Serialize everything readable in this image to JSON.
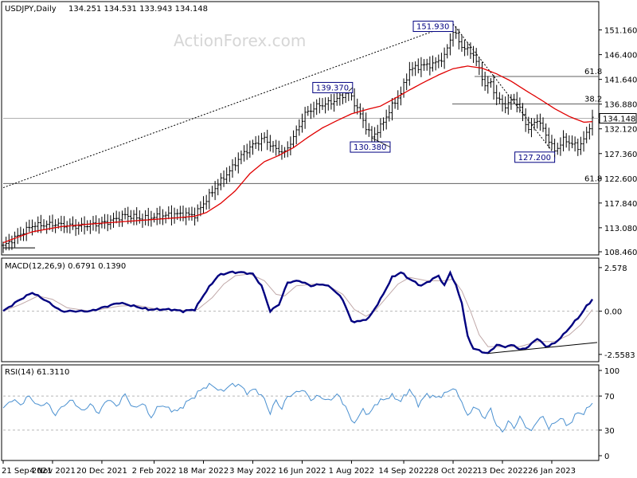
{
  "chart_data": {
    "type": "line",
    "symbol_label": "USDJPY,Daily",
    "ohlc_label": "134.251 134.531 133.943 134.148",
    "watermark": "ActionForex.com",
    "current_price": "134.148",
    "colors": {
      "price": "#000000",
      "ma": "#e00000",
      "macd": "#000080",
      "signal": "#c0a8a8",
      "rsi": "#4a90d0",
      "grid": "#b8b8b8",
      "label_border": "#000080"
    },
    "price_panel": {
      "ylim": [
        108.46,
        156.0
      ],
      "y_ticks": [
        "151.160",
        "146.400",
        "141.640",
        "136.880",
        "132.120",
        "127.360",
        "122.600",
        "117.840",
        "113.080",
        "108.460"
      ],
      "y_tick_values": [
        151.16,
        146.4,
        141.64,
        136.88,
        132.12,
        127.36,
        122.6,
        117.84,
        113.08,
        108.46
      ],
      "fib_levels": [
        {
          "label": "61.8",
          "value": 142.2
        },
        {
          "label": "38.2",
          "value": 136.9
        },
        {
          "label": "61.8",
          "value": 121.6
        }
      ],
      "current_price_value": 134.148,
      "annotations": [
        {
          "text": "151.930",
          "value": 151.93,
          "index": 155
        },
        {
          "text": "139.370",
          "value": 139.37,
          "index": 119
        },
        {
          "text": "130.380",
          "value": 130.38,
          "index": 127
        },
        {
          "text": "127.200",
          "value": 127.2,
          "index": 190
        }
      ],
      "close_keypoints": [
        [
          0,
          109.5
        ],
        [
          5,
          111.5
        ],
        [
          10,
          113.5
        ],
        [
          18,
          113.8
        ],
        [
          25,
          113.3
        ],
        [
          30,
          113.6
        ],
        [
          36,
          114.2
        ],
        [
          42,
          115.5
        ],
        [
          48,
          114.8
        ],
        [
          54,
          115.3
        ],
        [
          60,
          115.7
        ],
        [
          66,
          115.5
        ],
        [
          70,
          118.5
        ],
        [
          74,
          121.5
        ],
        [
          78,
          124.0
        ],
        [
          82,
          127.0
        ],
        [
          86,
          129.0
        ],
        [
          90,
          130.3
        ],
        [
          93,
          128.5
        ],
        [
          97,
          127.5
        ],
        [
          100,
          130.5
        ],
        [
          104,
          135.0
        ],
        [
          108,
          136.5
        ],
        [
          113,
          137.2
        ],
        [
          119,
          139.3
        ],
        [
          122,
          136.0
        ],
        [
          125,
          132.5
        ],
        [
          127,
          130.5
        ],
        [
          130,
          132.5
        ],
        [
          134,
          136.5
        ],
        [
          137,
          139.0
        ],
        [
          140,
          143.5
        ],
        [
          144,
          144.3
        ],
        [
          148,
          144.5
        ],
        [
          152,
          146.0
        ],
        [
          155,
          151.0
        ],
        [
          158,
          148.0
        ],
        [
          162,
          146.5
        ],
        [
          164,
          143.5
        ],
        [
          166,
          140.5
        ],
        [
          168,
          141.0
        ],
        [
          170,
          138.0
        ],
        [
          173,
          136.5
        ],
        [
          176,
          138.0
        ],
        [
          178,
          136.0
        ],
        [
          181,
          132.0
        ],
        [
          184,
          134.0
        ],
        [
          187,
          131.0
        ],
        [
          190,
          127.8
        ],
        [
          193,
          130.0
        ],
        [
          196,
          129.3
        ],
        [
          198,
          128.5
        ],
        [
          201,
          131.0
        ],
        [
          203,
          134.3
        ]
      ],
      "ma_keypoints": [
        [
          0,
          110.2
        ],
        [
          10,
          112.3
        ],
        [
          20,
          113.3
        ],
        [
          30,
          113.8
        ],
        [
          40,
          114.2
        ],
        [
          50,
          114.6
        ],
        [
          60,
          115.0
        ],
        [
          66,
          115.3
        ],
        [
          70,
          116.0
        ],
        [
          75,
          117.8
        ],
        [
          80,
          120.2
        ],
        [
          85,
          123.5
        ],
        [
          90,
          125.8
        ],
        [
          95,
          127.0
        ],
        [
          100,
          128.5
        ],
        [
          105,
          130.5
        ],
        [
          110,
          132.3
        ],
        [
          115,
          133.7
        ],
        [
          120,
          135.0
        ],
        [
          125,
          135.8
        ],
        [
          130,
          136.5
        ],
        [
          135,
          138.0
        ],
        [
          140,
          139.6
        ],
        [
          145,
          141.1
        ],
        [
          150,
          142.5
        ],
        [
          155,
          143.7
        ],
        [
          160,
          144.2
        ],
        [
          165,
          143.8
        ],
        [
          170,
          142.7
        ],
        [
          175,
          141.3
        ],
        [
          180,
          139.5
        ],
        [
          185,
          137.8
        ],
        [
          190,
          136.0
        ],
        [
          195,
          134.5
        ],
        [
          200,
          133.4
        ],
        [
          203,
          133.5
        ]
      ]
    },
    "macd_panel": {
      "title": "MACD(12,26,9) 0.6791 0.1390",
      "ylim": [
        -2.8,
        2.95
      ],
      "y_ticks": [
        "2.578",
        "0.00",
        "-2.5583"
      ],
      "y_tick_values": [
        2.578,
        0.0,
        -2.5583
      ],
      "macd_keypoints": [
        [
          0,
          0.0
        ],
        [
          5,
          0.6
        ],
        [
          10,
          1.1
        ],
        [
          15,
          0.6
        ],
        [
          20,
          0.0
        ],
        [
          30,
          0.0
        ],
        [
          40,
          0.5
        ],
        [
          45,
          0.3
        ],
        [
          50,
          0.1
        ],
        [
          58,
          0.1
        ],
        [
          62,
          0.0
        ],
        [
          66,
          0.1
        ],
        [
          70,
          1.2
        ],
        [
          74,
          2.1
        ],
        [
          78,
          2.3
        ],
        [
          82,
          2.3
        ],
        [
          86,
          2.2
        ],
        [
          89,
          1.5
        ],
        [
          92,
          0.0
        ],
        [
          95,
          0.4
        ],
        [
          98,
          1.7
        ],
        [
          102,
          1.8
        ],
        [
          106,
          1.5
        ],
        [
          110,
          1.6
        ],
        [
          113,
          1.4
        ],
        [
          117,
          0.7
        ],
        [
          120,
          -0.6
        ],
        [
          123,
          -0.6
        ],
        [
          126,
          -0.4
        ],
        [
          130,
          0.7
        ],
        [
          134,
          2.0
        ],
        [
          137,
          2.3
        ],
        [
          140,
          1.9
        ],
        [
          144,
          1.5
        ],
        [
          148,
          1.9
        ],
        [
          150,
          2.1
        ],
        [
          152,
          1.5
        ],
        [
          154,
          2.3
        ],
        [
          156,
          1.5
        ],
        [
          158,
          0.5
        ],
        [
          160,
          -1.5
        ],
        [
          162,
          -2.2
        ],
        [
          165,
          -2.4
        ],
        [
          167,
          -2.5
        ],
        [
          170,
          -2.0
        ],
        [
          173,
          -2.1
        ],
        [
          176,
          -2.0
        ],
        [
          178,
          -2.3
        ],
        [
          181,
          -2.1
        ],
        [
          184,
          -1.6
        ],
        [
          187,
          -2.1
        ],
        [
          190,
          -1.9
        ],
        [
          193,
          -1.4
        ],
        [
          196,
          -0.8
        ],
        [
          199,
          -0.2
        ],
        [
          201,
          0.3
        ],
        [
          203,
          0.7
        ]
      ],
      "signal_keypoints": [
        [
          0,
          0.0
        ],
        [
          6,
          0.4
        ],
        [
          12,
          0.9
        ],
        [
          17,
          0.7
        ],
        [
          22,
          0.2
        ],
        [
          30,
          0.0
        ],
        [
          40,
          0.3
        ],
        [
          46,
          0.35
        ],
        [
          52,
          0.15
        ],
        [
          62,
          0.05
        ],
        [
          67,
          0.1
        ],
        [
          72,
          0.8
        ],
        [
          76,
          1.6
        ],
        [
          80,
          2.1
        ],
        [
          85,
          2.2
        ],
        [
          90,
          1.8
        ],
        [
          94,
          1.0
        ],
        [
          97,
          0.9
        ],
        [
          101,
          1.5
        ],
        [
          107,
          1.6
        ],
        [
          112,
          1.5
        ],
        [
          117,
          1.0
        ],
        [
          121,
          0.1
        ],
        [
          125,
          -0.3
        ],
        [
          128,
          0.0
        ],
        [
          132,
          0.8
        ],
        [
          136,
          1.6
        ],
        [
          140,
          2.0
        ],
        [
          146,
          1.8
        ],
        [
          152,
          1.8
        ],
        [
          155,
          1.9
        ],
        [
          158,
          1.2
        ],
        [
          161,
          0.0
        ],
        [
          164,
          -1.4
        ],
        [
          167,
          -2.1
        ],
        [
          172,
          -2.1
        ],
        [
          178,
          -2.1
        ],
        [
          184,
          -1.8
        ],
        [
          190,
          -1.8
        ],
        [
          195,
          -1.4
        ],
        [
          199,
          -0.8
        ],
        [
          203,
          0.1
        ]
      ],
      "divergence_line": [
        [
          167,
          -2.5
        ],
        [
          203,
          -1.85
        ]
      ]
    },
    "rsi_panel": {
      "title": "RSI(14) 61.3110",
      "ylim": [
        0,
        100
      ],
      "y_ticks": [
        "100",
        "70",
        "30",
        "0"
      ],
      "y_tick_values": [
        100,
        70,
        30,
        0
      ],
      "levels": [
        70,
        30
      ],
      "rsi_keypoints": [
        [
          0,
          55
        ],
        [
          3,
          66
        ],
        [
          6,
          60
        ],
        [
          9,
          70
        ],
        [
          12,
          58
        ],
        [
          15,
          62
        ],
        [
          18,
          48
        ],
        [
          21,
          60
        ],
        [
          24,
          65
        ],
        [
          27,
          52
        ],
        [
          30,
          60
        ],
        [
          33,
          50
        ],
        [
          36,
          67
        ],
        [
          39,
          58
        ],
        [
          42,
          72
        ],
        [
          45,
          55
        ],
        [
          48,
          62
        ],
        [
          51,
          45
        ],
        [
          54,
          60
        ],
        [
          57,
          55
        ],
        [
          60,
          52
        ],
        [
          63,
          62
        ],
        [
          66,
          70
        ],
        [
          69,
          80
        ],
        [
          72,
          83
        ],
        [
          75,
          75
        ],
        [
          78,
          82
        ],
        [
          81,
          84
        ],
        [
          84,
          74
        ],
        [
          87,
          78
        ],
        [
          90,
          66
        ],
        [
          92,
          50
        ],
        [
          94,
          65
        ],
        [
          96,
          55
        ],
        [
          98,
          70
        ],
        [
          100,
          72
        ],
        [
          103,
          78
        ],
        [
          106,
          66
        ],
        [
          109,
          70
        ],
        [
          112,
          64
        ],
        [
          115,
          72
        ],
        [
          118,
          58
        ],
        [
          120,
          40
        ],
        [
          122,
          42
        ],
        [
          124,
          55
        ],
        [
          126,
          47
        ],
        [
          128,
          60
        ],
        [
          131,
          66
        ],
        [
          134,
          70
        ],
        [
          137,
          64
        ],
        [
          140,
          78
        ],
        [
          143,
          60
        ],
        [
          146,
          72
        ],
        [
          149,
          68
        ],
        [
          152,
          72
        ],
        [
          155,
          80
        ],
        [
          158,
          64
        ],
        [
          160,
          45
        ],
        [
          162,
          58
        ],
        [
          164,
          52
        ],
        [
          166,
          44
        ],
        [
          168,
          55
        ],
        [
          170,
          35
        ],
        [
          172,
          28
        ],
        [
          174,
          40
        ],
        [
          176,
          33
        ],
        [
          178,
          45
        ],
        [
          180,
          35
        ],
        [
          182,
          28
        ],
        [
          184,
          42
        ],
        [
          186,
          45
        ],
        [
          188,
          33
        ],
        [
          190,
          38
        ],
        [
          192,
          45
        ],
        [
          194,
          36
        ],
        [
          196,
          40
        ],
        [
          198,
          52
        ],
        [
          200,
          48
        ],
        [
          202,
          60
        ],
        [
          203,
          61.3
        ]
      ]
    },
    "x_tick_labels": [
      "21 Sep 2021",
      "4 Nov 2021",
      "20 Dec 2021",
      "2 Feb 2022",
      "18 Mar 2022",
      "3 May 2022",
      "16 Jun 2022",
      "1 Aug 2022",
      "14 Sep 2022",
      "28 Oct 2022",
      "13 Dec 2022",
      "26 Jan 2023"
    ]
  }
}
